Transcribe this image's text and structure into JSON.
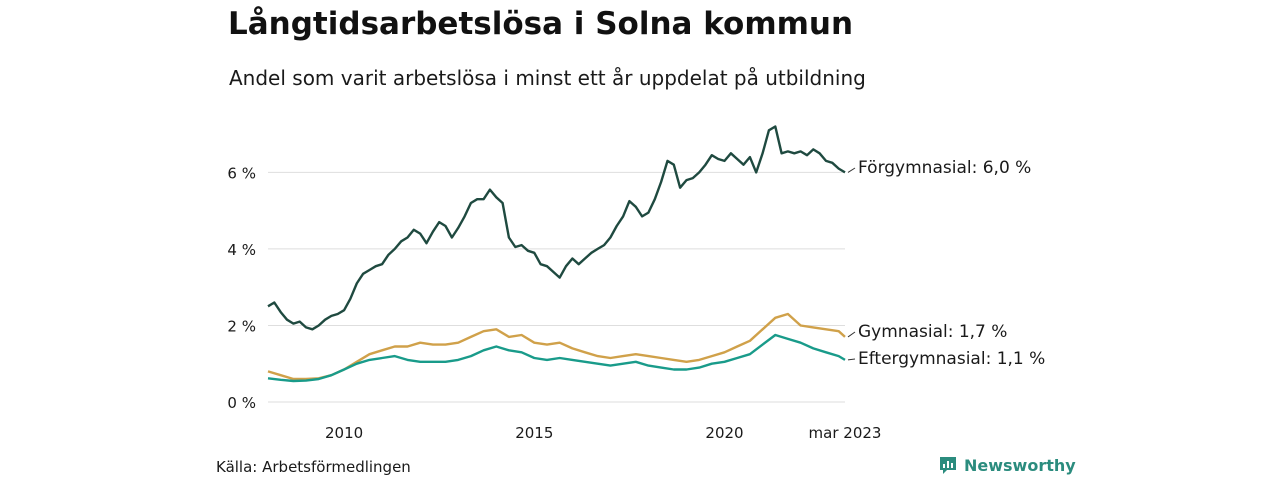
{
  "title": "Långtidsarbetslösa i Solna kommun",
  "subtitle": "Andel som varit arbetslösa i minst ett år uppdelat på utbildning",
  "source": "Källa: Arbetsförmedlingen",
  "brand": {
    "name": "Newsworthy",
    "color": "#2b8c7e",
    "icon": "newsworthy-logo-icon"
  },
  "chart_data": {
    "type": "line",
    "title": "Långtidsarbetslösa i Solna kommun",
    "subtitle": "Andel som varit arbetslösa i minst ett år uppdelat på utbildning",
    "x_range": [
      "2008-01",
      "2023-03"
    ],
    "ylim": [
      0,
      7.5
    ],
    "y_ticks": [
      {
        "value": 0,
        "label": "0 %"
      },
      {
        "value": 2,
        "label": "2 %"
      },
      {
        "value": 4,
        "label": "4 %"
      },
      {
        "value": 6,
        "label": "6 %"
      }
    ],
    "x_ticks": [
      {
        "date": "2010-01",
        "label": "2010"
      },
      {
        "date": "2015-01",
        "label": "2015"
      },
      {
        "date": "2020-01",
        "label": "2020"
      },
      {
        "date": "2023-03",
        "label": "mar 2023"
      }
    ],
    "grid": true,
    "legend": "direct labels at line ends",
    "series": [
      {
        "name": "Förgymnasial",
        "end_label": "Förgymnasial: 6,0 %",
        "color": "#1f4a40",
        "points": [
          [
            "2008-01",
            2.5
          ],
          [
            "2008-03",
            2.6
          ],
          [
            "2008-05",
            2.35
          ],
          [
            "2008-07",
            2.15
          ],
          [
            "2008-09",
            2.05
          ],
          [
            "2008-11",
            2.1
          ],
          [
            "2009-01",
            1.95
          ],
          [
            "2009-03",
            1.9
          ],
          [
            "2009-05",
            2.0
          ],
          [
            "2009-07",
            2.15
          ],
          [
            "2009-09",
            2.25
          ],
          [
            "2009-11",
            2.3
          ],
          [
            "2010-01",
            2.4
          ],
          [
            "2010-03",
            2.7
          ],
          [
            "2010-05",
            3.1
          ],
          [
            "2010-07",
            3.35
          ],
          [
            "2010-09",
            3.45
          ],
          [
            "2010-11",
            3.55
          ],
          [
            "2011-01",
            3.6
          ],
          [
            "2011-03",
            3.85
          ],
          [
            "2011-05",
            4.0
          ],
          [
            "2011-07",
            4.2
          ],
          [
            "2011-09",
            4.3
          ],
          [
            "2011-11",
            4.5
          ],
          [
            "2012-01",
            4.4
          ],
          [
            "2012-03",
            4.15
          ],
          [
            "2012-05",
            4.45
          ],
          [
            "2012-07",
            4.7
          ],
          [
            "2012-09",
            4.6
          ],
          [
            "2012-11",
            4.3
          ],
          [
            "2013-01",
            4.55
          ],
          [
            "2013-03",
            4.85
          ],
          [
            "2013-05",
            5.2
          ],
          [
            "2013-07",
            5.3
          ],
          [
            "2013-09",
            5.3
          ],
          [
            "2013-11",
            5.55
          ],
          [
            "2014-01",
            5.35
          ],
          [
            "2014-03",
            5.2
          ],
          [
            "2014-05",
            4.3
          ],
          [
            "2014-07",
            4.05
          ],
          [
            "2014-09",
            4.1
          ],
          [
            "2014-11",
            3.95
          ],
          [
            "2015-01",
            3.9
          ],
          [
            "2015-03",
            3.6
          ],
          [
            "2015-05",
            3.55
          ],
          [
            "2015-07",
            3.4
          ],
          [
            "2015-09",
            3.25
          ],
          [
            "2015-11",
            3.55
          ],
          [
            "2016-01",
            3.75
          ],
          [
            "2016-03",
            3.6
          ],
          [
            "2016-05",
            3.75
          ],
          [
            "2016-07",
            3.9
          ],
          [
            "2016-09",
            4.0
          ],
          [
            "2016-11",
            4.1
          ],
          [
            "2017-01",
            4.3
          ],
          [
            "2017-03",
            4.6
          ],
          [
            "2017-05",
            4.85
          ],
          [
            "2017-07",
            5.25
          ],
          [
            "2017-09",
            5.1
          ],
          [
            "2017-11",
            4.85
          ],
          [
            "2018-01",
            4.95
          ],
          [
            "2018-03",
            5.3
          ],
          [
            "2018-05",
            5.75
          ],
          [
            "2018-07",
            6.3
          ],
          [
            "2018-09",
            6.2
          ],
          [
            "2018-11",
            5.6
          ],
          [
            "2019-01",
            5.8
          ],
          [
            "2019-03",
            5.85
          ],
          [
            "2019-05",
            6.0
          ],
          [
            "2019-07",
            6.2
          ],
          [
            "2019-09",
            6.45
          ],
          [
            "2019-11",
            6.35
          ],
          [
            "2020-01",
            6.3
          ],
          [
            "2020-03",
            6.5
          ],
          [
            "2020-05",
            6.35
          ],
          [
            "2020-07",
            6.2
          ],
          [
            "2020-09",
            6.4
          ],
          [
            "2020-11",
            6.0
          ],
          [
            "2021-01",
            6.5
          ],
          [
            "2021-03",
            7.1
          ],
          [
            "2021-05",
            7.2
          ],
          [
            "2021-07",
            6.5
          ],
          [
            "2021-09",
            6.55
          ],
          [
            "2021-11",
            6.5
          ],
          [
            "2022-01",
            6.55
          ],
          [
            "2022-03",
            6.45
          ],
          [
            "2022-05",
            6.6
          ],
          [
            "2022-07",
            6.5
          ],
          [
            "2022-09",
            6.3
          ],
          [
            "2022-11",
            6.25
          ],
          [
            "2023-01",
            6.1
          ],
          [
            "2023-03",
            6.0
          ]
        ]
      },
      {
        "name": "Gymnasial",
        "end_label": "Gymnasial: 1,7 %",
        "color": "#d0a14a",
        "points": [
          [
            "2008-01",
            0.8
          ],
          [
            "2008-05",
            0.7
          ],
          [
            "2008-09",
            0.6
          ],
          [
            "2009-01",
            0.6
          ],
          [
            "2009-05",
            0.62
          ],
          [
            "2009-09",
            0.7
          ],
          [
            "2010-01",
            0.85
          ],
          [
            "2010-05",
            1.05
          ],
          [
            "2010-09",
            1.25
          ],
          [
            "2011-01",
            1.35
          ],
          [
            "2011-05",
            1.45
          ],
          [
            "2011-09",
            1.45
          ],
          [
            "2012-01",
            1.55
          ],
          [
            "2012-05",
            1.5
          ],
          [
            "2012-09",
            1.5
          ],
          [
            "2013-01",
            1.55
          ],
          [
            "2013-05",
            1.7
          ],
          [
            "2013-09",
            1.85
          ],
          [
            "2014-01",
            1.9
          ],
          [
            "2014-05",
            1.7
          ],
          [
            "2014-09",
            1.75
          ],
          [
            "2015-01",
            1.55
          ],
          [
            "2015-05",
            1.5
          ],
          [
            "2015-09",
            1.55
          ],
          [
            "2016-01",
            1.4
          ],
          [
            "2016-05",
            1.3
          ],
          [
            "2016-09",
            1.2
          ],
          [
            "2017-01",
            1.15
          ],
          [
            "2017-05",
            1.2
          ],
          [
            "2017-09",
            1.25
          ],
          [
            "2018-01",
            1.2
          ],
          [
            "2018-05",
            1.15
          ],
          [
            "2018-09",
            1.1
          ],
          [
            "2019-01",
            1.05
          ],
          [
            "2019-05",
            1.1
          ],
          [
            "2019-09",
            1.2
          ],
          [
            "2020-01",
            1.3
          ],
          [
            "2020-05",
            1.45
          ],
          [
            "2020-09",
            1.6
          ],
          [
            "2021-01",
            1.9
          ],
          [
            "2021-05",
            2.2
          ],
          [
            "2021-09",
            2.3
          ],
          [
            "2022-01",
            2.0
          ],
          [
            "2022-05",
            1.95
          ],
          [
            "2022-09",
            1.9
          ],
          [
            "2023-01",
            1.85
          ],
          [
            "2023-03",
            1.7
          ]
        ]
      },
      {
        "name": "Eftergymnasial",
        "end_label": "Eftergymnasial: 1,1 %",
        "color": "#199b8a",
        "points": [
          [
            "2008-01",
            0.62
          ],
          [
            "2008-05",
            0.58
          ],
          [
            "2008-09",
            0.55
          ],
          [
            "2009-01",
            0.56
          ],
          [
            "2009-05",
            0.6
          ],
          [
            "2009-09",
            0.7
          ],
          [
            "2010-01",
            0.85
          ],
          [
            "2010-05",
            1.0
          ],
          [
            "2010-09",
            1.1
          ],
          [
            "2011-01",
            1.15
          ],
          [
            "2011-05",
            1.2
          ],
          [
            "2011-09",
            1.1
          ],
          [
            "2012-01",
            1.05
          ],
          [
            "2012-05",
            1.05
          ],
          [
            "2012-09",
            1.05
          ],
          [
            "2013-01",
            1.1
          ],
          [
            "2013-05",
            1.2
          ],
          [
            "2013-09",
            1.35
          ],
          [
            "2014-01",
            1.45
          ],
          [
            "2014-05",
            1.35
          ],
          [
            "2014-09",
            1.3
          ],
          [
            "2015-01",
            1.15
          ],
          [
            "2015-05",
            1.1
          ],
          [
            "2015-09",
            1.15
          ],
          [
            "2016-01",
            1.1
          ],
          [
            "2016-05",
            1.05
          ],
          [
            "2016-09",
            1.0
          ],
          [
            "2017-01",
            0.95
          ],
          [
            "2017-05",
            1.0
          ],
          [
            "2017-09",
            1.05
          ],
          [
            "2018-01",
            0.95
          ],
          [
            "2018-05",
            0.9
          ],
          [
            "2018-09",
            0.85
          ],
          [
            "2019-01",
            0.85
          ],
          [
            "2019-05",
            0.9
          ],
          [
            "2019-09",
            1.0
          ],
          [
            "2020-01",
            1.05
          ],
          [
            "2020-05",
            1.15
          ],
          [
            "2020-09",
            1.25
          ],
          [
            "2021-01",
            1.5
          ],
          [
            "2021-05",
            1.75
          ],
          [
            "2021-09",
            1.65
          ],
          [
            "2022-01",
            1.55
          ],
          [
            "2022-05",
            1.4
          ],
          [
            "2022-09",
            1.3
          ],
          [
            "2023-01",
            1.2
          ],
          [
            "2023-03",
            1.1
          ]
        ]
      }
    ]
  }
}
